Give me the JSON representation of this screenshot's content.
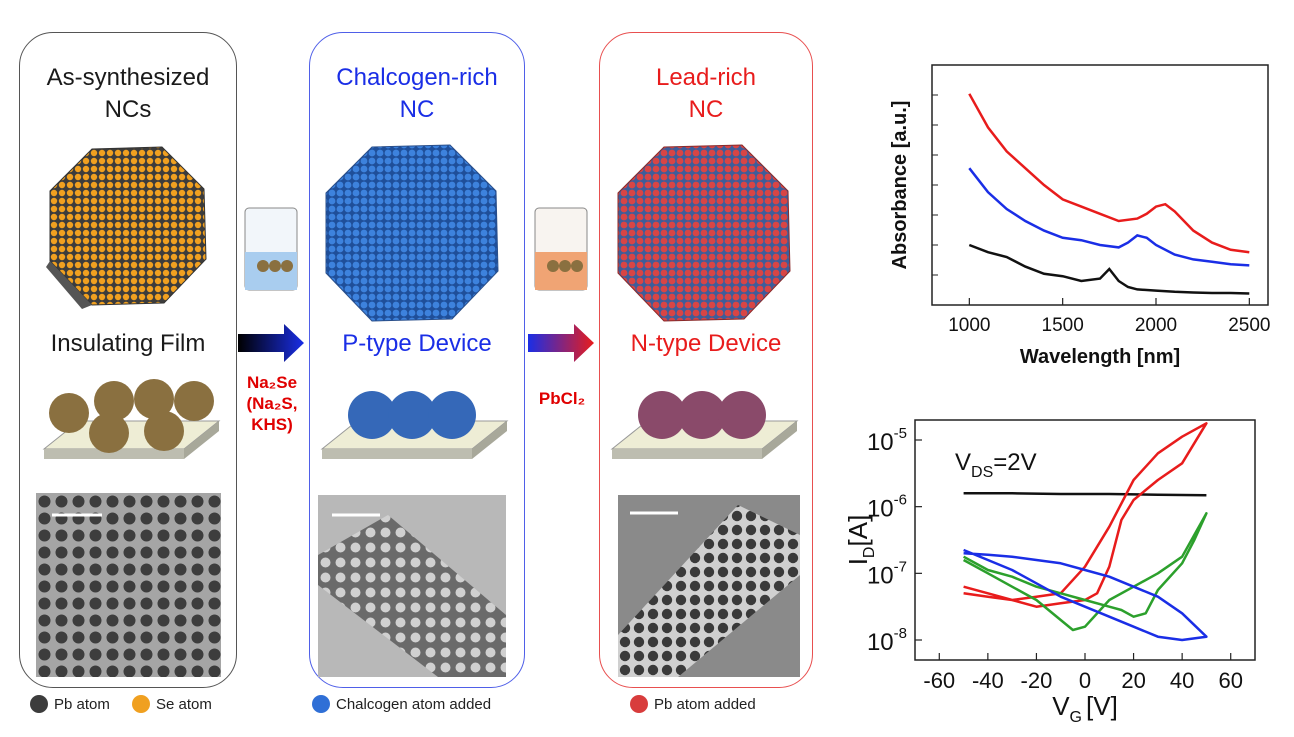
{
  "panels": {
    "p1": {
      "title1": "As-synthesized",
      "title2": "NCs",
      "film": "Insulating Film",
      "color": "#1a1a1a"
    },
    "p2": {
      "title1": "Chalcogen-rich",
      "title2": "NC",
      "film": "P-type Device",
      "color": "#1a2ee6"
    },
    "p3": {
      "title1": "Lead-rich",
      "title2": "NC",
      "film": "N-type Device",
      "color": "#e81c1c"
    }
  },
  "arrows": {
    "a1": {
      "l1": "Na₂Se",
      "l2": "(Na₂S,",
      "l3": "KHS)"
    },
    "a2": {
      "l1": "PbCl₂"
    }
  },
  "legend": {
    "pb": "Pb atom",
    "se": "Se atom",
    "chalc": "Chalcogen atom added",
    "pbadd": "Pb atom added"
  },
  "colors": {
    "pb": "#3c3c3c",
    "se": "#f0a020",
    "chalcogen": "#2f6fd6",
    "lead": "#d83c3c"
  },
  "chart_data": [
    {
      "type": "line",
      "xlabel": "Wavelength [nm]",
      "ylabel": "Absorbance [a.u.]",
      "xlim": [
        800,
        2600
      ],
      "ylim": [
        0,
        1
      ],
      "xticks": [
        "1000",
        "1500",
        "2000",
        "2500"
      ],
      "series": [
        {
          "color": "#e81c1c",
          "x": [
            1000,
            1100,
            1200,
            1300,
            1400,
            1500,
            1600,
            1700,
            1800,
            1900,
            1950,
            2000,
            2050,
            2100,
            2200,
            2300,
            2400,
            2500
          ],
          "y": [
            0.88,
            0.74,
            0.64,
            0.57,
            0.5,
            0.44,
            0.41,
            0.38,
            0.35,
            0.36,
            0.38,
            0.41,
            0.42,
            0.39,
            0.31,
            0.26,
            0.23,
            0.22
          ]
        },
        {
          "color": "#1a2ee6",
          "x": [
            1000,
            1100,
            1200,
            1300,
            1400,
            1500,
            1600,
            1700,
            1800,
            1850,
            1900,
            1950,
            2000,
            2100,
            2200,
            2300,
            2400,
            2500
          ],
          "y": [
            0.57,
            0.47,
            0.4,
            0.35,
            0.31,
            0.28,
            0.27,
            0.25,
            0.24,
            0.26,
            0.29,
            0.28,
            0.25,
            0.21,
            0.19,
            0.18,
            0.17,
            0.165
          ]
        },
        {
          "color": "#111111",
          "x": [
            1000,
            1100,
            1200,
            1300,
            1400,
            1500,
            1600,
            1700,
            1750,
            1800,
            1850,
            1900,
            2000,
            2100,
            2200,
            2300,
            2400,
            2500
          ],
          "y": [
            0.25,
            0.22,
            0.2,
            0.16,
            0.13,
            0.12,
            0.1,
            0.11,
            0.15,
            0.1,
            0.075,
            0.065,
            0.06,
            0.055,
            0.052,
            0.05,
            0.05,
            0.048
          ]
        }
      ]
    },
    {
      "type": "line",
      "xlabel": "V",
      "xlabel_sub": "G",
      "xlabel_unit": "[V]",
      "ylabel": "I",
      "ylabel_sub": "D",
      "ylabel_unit": "[A]",
      "annotation": "V",
      "annotation_sub": "DS",
      "annotation_rest": "=2V",
      "xlim": [
        -70,
        70
      ],
      "ylim_log10": [
        -8.3,
        -4.7
      ],
      "xticks": [
        "-60",
        "-40",
        "-20",
        "0",
        "20",
        "40",
        "60"
      ],
      "yticks": [
        {
          "base": "10",
          "exp": "-5"
        },
        {
          "base": "10",
          "exp": "-6"
        },
        {
          "base": "10",
          "exp": "-7"
        },
        {
          "base": "10",
          "exp": "-8"
        }
      ],
      "ytick_values": [
        -5,
        -6,
        -7,
        -8
      ],
      "series": [
        {
          "color": "#111111",
          "x": [
            -50,
            -30,
            -10,
            10,
            30,
            50
          ],
          "y": [
            -5.8,
            -5.8,
            -5.81,
            -5.81,
            -5.82,
            -5.83
          ]
        },
        {
          "color": "#e81c1c",
          "x": [
            -50,
            -40,
            -30,
            -20,
            -10,
            0,
            5,
            10,
            15,
            20,
            30,
            40,
            50,
            40,
            30,
            20,
            10,
            0,
            -10,
            -20,
            -30,
            -40,
            -50
          ],
          "y": [
            -7.2,
            -7.3,
            -7.4,
            -7.5,
            -7.45,
            -7.4,
            -7.3,
            -6.9,
            -6.2,
            -5.9,
            -5.6,
            -5.35,
            -4.75,
            -4.95,
            -5.2,
            -5.6,
            -6.3,
            -6.9,
            -7.3,
            -7.35,
            -7.4,
            -7.35,
            -7.3
          ]
        },
        {
          "color": "#2ca02c",
          "x": [
            -50,
            -40,
            -30,
            -20,
            -10,
            -5,
            0,
            10,
            20,
            30,
            40,
            50,
            45,
            40,
            30,
            25,
            20,
            15,
            10,
            0,
            -10,
            -20,
            -30,
            -40,
            -50
          ],
          "y": [
            -6.8,
            -7.0,
            -7.2,
            -7.4,
            -7.7,
            -7.85,
            -7.8,
            -7.4,
            -7.2,
            -7.0,
            -6.75,
            -6.1,
            -6.5,
            -6.85,
            -7.25,
            -7.6,
            -7.65,
            -7.55,
            -7.5,
            -7.4,
            -7.3,
            -7.2,
            -7.05,
            -6.95,
            -6.75
          ]
        },
        {
          "color": "#1a2ee6",
          "x": [
            -50,
            -40,
            -30,
            -20,
            -10,
            0,
            10,
            20,
            30,
            40,
            50,
            40,
            30,
            20,
            10,
            0,
            -10,
            -20,
            -30,
            -40,
            -50
          ],
          "y": [
            -6.65,
            -6.8,
            -6.95,
            -7.15,
            -7.35,
            -7.5,
            -7.65,
            -7.8,
            -7.95,
            -8.0,
            -7.95,
            -7.6,
            -7.35,
            -7.2,
            -7.05,
            -6.95,
            -6.85,
            -6.8,
            -6.75,
            -6.72,
            -6.7
          ]
        }
      ]
    }
  ]
}
